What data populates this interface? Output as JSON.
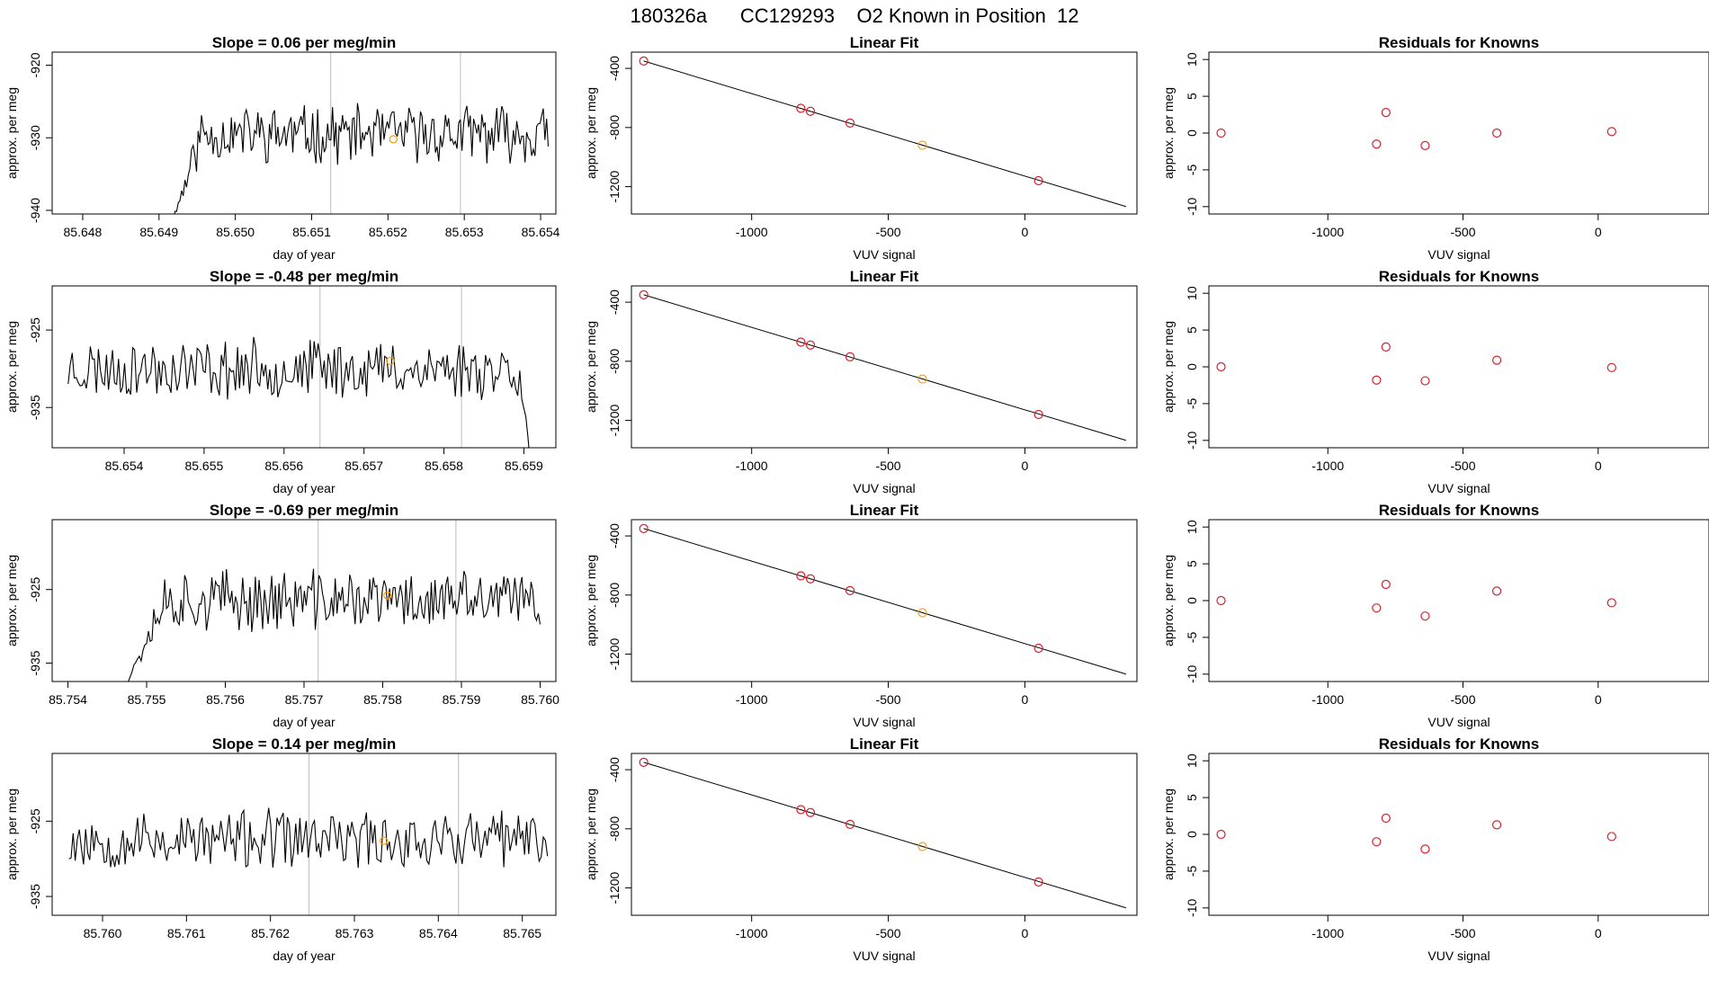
{
  "figure_title": "180326a      CC129293    O2 Known in Position  12",
  "colors": {
    "line": "#000000",
    "known_point": "#d2222d",
    "highlight_point": "#ff9900",
    "vline": "#bbbbbb",
    "box": "#000000"
  },
  "chart_data": [
    {
      "type": "line",
      "row": 1,
      "title": "Slope =  0.06  per meg/min",
      "xlabel": "day of year",
      "ylabel": "approx. per meg",
      "xlim": [
        85.6476,
        85.6542
      ],
      "ylim": [
        -940.5,
        -918.2
      ],
      "xticks": [
        85.648,
        85.649,
        85.65,
        85.651,
        85.652,
        85.653,
        85.654
      ],
      "xtick_labels": [
        "85.648",
        "85.649",
        "85.650",
        "85.651",
        "85.652",
        "85.653",
        "85.654"
      ],
      "yticks": [
        -920,
        -930,
        -940
      ],
      "ytick_labels": [
        "-920",
        "-930",
        "-940"
      ],
      "vlines": [
        85.65125,
        85.65295
      ],
      "highlight": {
        "x": 85.65207,
        "y": -930.2
      },
      "series_start": 85.6491,
      "series_end": 85.6541,
      "series_seed": 11,
      "series_mean": -929.5,
      "series_amp": 3.4,
      "series_rise": {
        "from": -944,
        "length": 0.00045
      }
    },
    {
      "type": "scatter_fit",
      "row": 1,
      "title": "Linear Fit",
      "xlabel": "VUV signal",
      "ylabel": "approx. per meg",
      "xlim": [
        -1440,
        410
      ],
      "ylim": [
        -1385,
        -290
      ],
      "xticks": [
        -1000,
        -500,
        0
      ],
      "xtick_labels": [
        "-1000",
        "-500",
        "0"
      ],
      "yticks": [
        -400,
        -800,
        -1200
      ],
      "ytick_labels": [
        "-400",
        "-800",
        "-1200"
      ],
      "fit_line": {
        "x": [
          -1395,
          370
        ],
        "y": [
          -350,
          -1335
        ]
      },
      "points": {
        "x": [
          -1395,
          -820,
          -785,
          -640,
          -375,
          50
        ],
        "y": [
          -350,
          -670,
          -690,
          -770,
          -920,
          -1160
        ]
      },
      "highlight_index": 4
    },
    {
      "type": "scatter",
      "row": 1,
      "title": "Residuals for Knowns",
      "xlabel": "VUV signal",
      "ylabel": "approx. per meg",
      "xlim": [
        -1440,
        410
      ],
      "ylim": [
        -11,
        11
      ],
      "xticks": [
        -1000,
        -500,
        0
      ],
      "xtick_labels": [
        "-1000",
        "-500",
        "0"
      ],
      "yticks": [
        10,
        5,
        0,
        -5,
        -10
      ],
      "ytick_labels": [
        "10",
        "5",
        "0",
        "-5",
        "-10"
      ],
      "points": {
        "x": [
          -1395,
          -820,
          -785,
          -640,
          -375,
          50
        ],
        "y": [
          0.0,
          -1.5,
          2.8,
          -1.7,
          0.0,
          0.2
        ]
      }
    },
    {
      "type": "line",
      "row": 2,
      "title": "Slope =  -0.48  per meg/min",
      "xlabel": "day of year",
      "ylabel": "approx. per meg",
      "xlim": [
        85.6531,
        85.6594
      ],
      "ylim": [
        -940.2,
        -919.3
      ],
      "xticks": [
        85.654,
        85.655,
        85.656,
        85.657,
        85.658,
        85.659
      ],
      "xtick_labels": [
        "85.654",
        "85.655",
        "85.656",
        "85.657",
        "85.658",
        "85.659"
      ],
      "yticks": [
        -925,
        -935
      ],
      "ytick_labels": [
        "-925",
        "-935"
      ],
      "vlines": [
        85.65645,
        85.65822
      ],
      "highlight": {
        "x": 85.65733,
        "y": -929.0
      },
      "series_start": 85.6533,
      "series_end": 85.6591,
      "series_seed": 23,
      "series_mean": -930.0,
      "series_amp": 3.3,
      "series_fall": {
        "to": -944,
        "length": 0.00015
      }
    },
    {
      "type": "scatter_fit",
      "row": 2,
      "title": "Linear Fit",
      "xlabel": "VUV signal",
      "ylabel": "approx. per meg",
      "xlim": [
        -1440,
        410
      ],
      "ylim": [
        -1385,
        -290
      ],
      "xticks": [
        -1000,
        -500,
        0
      ],
      "xtick_labels": [
        "-1000",
        "-500",
        "0"
      ],
      "yticks": [
        -400,
        -800,
        -1200
      ],
      "ytick_labels": [
        "-400",
        "-800",
        "-1200"
      ],
      "fit_line": {
        "x": [
          -1395,
          370
        ],
        "y": [
          -350,
          -1335
        ]
      },
      "points": {
        "x": [
          -1395,
          -820,
          -785,
          -640,
          -375,
          50
        ],
        "y": [
          -350,
          -670,
          -690,
          -770,
          -920,
          -1160
        ]
      },
      "highlight_index": 4
    },
    {
      "type": "scatter",
      "row": 2,
      "title": "Residuals for Knowns",
      "xlabel": "VUV signal",
      "ylabel": "approx. per meg",
      "xlim": [
        -1440,
        410
      ],
      "ylim": [
        -11,
        11
      ],
      "xticks": [
        -1000,
        -500,
        0
      ],
      "xtick_labels": [
        "-1000",
        "-500",
        "0"
      ],
      "yticks": [
        10,
        5,
        0,
        -5,
        -10
      ],
      "ytick_labels": [
        "10",
        "5",
        "0",
        "-5",
        "-10"
      ],
      "points": {
        "x": [
          -1395,
          -820,
          -785,
          -640,
          -375,
          50
        ],
        "y": [
          0.0,
          -1.8,
          2.7,
          -1.9,
          0.9,
          -0.1
        ]
      }
    },
    {
      "type": "line",
      "row": 3,
      "title": "Slope =  -0.69  per meg/min",
      "xlabel": "day of year",
      "ylabel": "approx. per meg",
      "xlim": [
        85.7538,
        85.7602
      ],
      "ylim": [
        -937.5,
        -915.5
      ],
      "xticks": [
        85.754,
        85.755,
        85.756,
        85.757,
        85.758,
        85.759,
        85.76
      ],
      "xtick_labels": [
        "85.754",
        "85.755",
        "85.756",
        "85.757",
        "85.758",
        "85.759",
        "85.760"
      ],
      "yticks": [
        -925,
        -935
      ],
      "ytick_labels": [
        "-925",
        "-935"
      ],
      "vlines": [
        85.75718,
        85.75893
      ],
      "highlight": {
        "x": 85.75806,
        "y": -925.8
      },
      "series_start": 85.7547,
      "series_end": 85.76,
      "series_seed": 37,
      "series_mean": -926.5,
      "series_amp": 3.6,
      "series_rise": {
        "from": -939,
        "length": 0.0005
      }
    },
    {
      "type": "scatter_fit",
      "row": 3,
      "title": "Linear Fit",
      "xlabel": "VUV signal",
      "ylabel": "approx. per meg",
      "xlim": [
        -1440,
        410
      ],
      "ylim": [
        -1385,
        -290
      ],
      "xticks": [
        -1000,
        -500,
        0
      ],
      "xtick_labels": [
        "-1000",
        "-500",
        "0"
      ],
      "yticks": [
        -400,
        -800,
        -1200
      ],
      "ytick_labels": [
        "-400",
        "-800",
        "-1200"
      ],
      "fit_line": {
        "x": [
          -1395,
          370
        ],
        "y": [
          -350,
          -1335
        ]
      },
      "points": {
        "x": [
          -1395,
          -820,
          -785,
          -640,
          -375,
          50
        ],
        "y": [
          -350,
          -670,
          -690,
          -770,
          -920,
          -1160
        ]
      },
      "highlight_index": 4
    },
    {
      "type": "scatter",
      "row": 3,
      "title": "Residuals for Knowns",
      "xlabel": "VUV signal",
      "ylabel": "approx. per meg",
      "xlim": [
        -1440,
        410
      ],
      "ylim": [
        -11,
        11
      ],
      "xticks": [
        -1000,
        -500,
        0
      ],
      "xtick_labels": [
        "-1000",
        "-500",
        "0"
      ],
      "yticks": [
        10,
        5,
        0,
        -5,
        -10
      ],
      "ytick_labels": [
        "10",
        "5",
        "0",
        "-5",
        "-10"
      ],
      "points": {
        "x": [
          -1395,
          -820,
          -785,
          -640,
          -375,
          50
        ],
        "y": [
          0.0,
          -1.0,
          2.2,
          -2.1,
          1.3,
          -0.3
        ]
      }
    },
    {
      "type": "line",
      "row": 4,
      "title": "Slope =  0.14  per meg/min",
      "xlabel": "day of year",
      "ylabel": "approx. per meg",
      "xlim": [
        85.7594,
        85.7654
      ],
      "ylim": [
        -937.5,
        -916.0
      ],
      "xticks": [
        85.76,
        85.761,
        85.762,
        85.763,
        85.764,
        85.765
      ],
      "xtick_labels": [
        "85.760",
        "85.761",
        "85.762",
        "85.763",
        "85.764",
        "85.765"
      ],
      "yticks": [
        -925,
        -935
      ],
      "ytick_labels": [
        "-925",
        "-935"
      ],
      "vlines": [
        85.76246,
        85.76424
      ],
      "highlight": {
        "x": 85.76335,
        "y": -927.6
      },
      "series_start": 85.7596,
      "series_end": 85.7653,
      "series_seed": 53,
      "series_mean": -927.5,
      "series_amp": 3.4
    },
    {
      "type": "scatter_fit",
      "row": 4,
      "title": "Linear Fit",
      "xlabel": "VUV signal",
      "ylabel": "approx. per meg",
      "xlim": [
        -1440,
        410
      ],
      "ylim": [
        -1385,
        -290
      ],
      "xticks": [
        -1000,
        -500,
        0
      ],
      "xtick_labels": [
        "-1000",
        "-500",
        "0"
      ],
      "yticks": [
        -400,
        -800,
        -1200
      ],
      "ytick_labels": [
        "-400",
        "-800",
        "-1200"
      ],
      "fit_line": {
        "x": [
          -1395,
          370
        ],
        "y": [
          -350,
          -1335
        ]
      },
      "points": {
        "x": [
          -1395,
          -820,
          -785,
          -640,
          -375,
          50
        ],
        "y": [
          -350,
          -670,
          -690,
          -770,
          -920,
          -1160
        ]
      },
      "highlight_index": 4
    },
    {
      "type": "scatter",
      "row": 4,
      "title": "Residuals for Knowns",
      "xlabel": "VUV signal",
      "ylabel": "approx. per meg",
      "xlim": [
        -1440,
        410
      ],
      "ylim": [
        -11,
        11
      ],
      "xticks": [
        -1000,
        -500,
        0
      ],
      "xtick_labels": [
        "-1000",
        "-500",
        "0"
      ],
      "yticks": [
        10,
        5,
        0,
        -5,
        -10
      ],
      "ytick_labels": [
        "10",
        "5",
        "0",
        "-5",
        "-10"
      ],
      "points": {
        "x": [
          -1395,
          -820,
          -785,
          -640,
          -375,
          50
        ],
        "y": [
          0.0,
          -1.0,
          2.2,
          -2.0,
          1.3,
          -0.3
        ]
      }
    }
  ]
}
